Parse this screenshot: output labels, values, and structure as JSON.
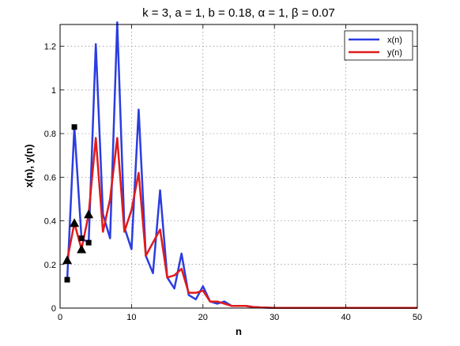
{
  "chart_data": {
    "type": "line",
    "title": "k = 3, a = 1, b = 0.18, α = 1, β = 0.07",
    "xlabel": "n",
    "ylabel": "x(n),  y(n)",
    "xlim": [
      0,
      50
    ],
    "ylim": [
      0,
      1.3
    ],
    "xticks": [
      0,
      10,
      20,
      30,
      40,
      50
    ],
    "yticks": [
      0,
      0.2,
      0.4,
      0.6,
      0.8,
      1,
      1.2
    ],
    "xtick_labels": [
      "0",
      "10",
      "20",
      "30",
      "40",
      "50"
    ],
    "ytick_labels": [
      "0",
      "0.2",
      "0.4",
      "0.6",
      "0.8",
      "1",
      "1.2"
    ],
    "grid": true,
    "legend_position": "top-right",
    "series": [
      {
        "name": "x(n)",
        "color": "#2b3de0",
        "x": [
          1,
          2,
          3,
          4,
          5,
          6,
          7,
          8,
          9,
          10,
          11,
          12,
          13,
          14,
          15,
          16,
          17,
          18,
          19,
          20,
          21,
          22,
          23,
          24,
          25,
          26,
          27,
          28,
          29,
          30,
          31,
          32,
          33,
          34,
          35,
          36,
          37,
          38,
          39,
          40,
          41,
          42,
          43,
          44,
          45,
          46,
          47,
          48,
          49,
          50
        ],
        "values": [
          0.13,
          0.83,
          0.32,
          0.3,
          1.21,
          0.43,
          0.32,
          1.31,
          0.37,
          0.27,
          0.91,
          0.24,
          0.16,
          0.54,
          0.14,
          0.09,
          0.25,
          0.06,
          0.04,
          0.1,
          0.03,
          0.02,
          0.03,
          0.01,
          0.01,
          0.01,
          0.005,
          0.003,
          0.002,
          0.001,
          0.001,
          0.001,
          0.001,
          0.001,
          0.001,
          0.001,
          0.001,
          0.001,
          0.001,
          0.001,
          0.001,
          0.001,
          0.001,
          0.001,
          0.001,
          0.001,
          0.001,
          0.001,
          0.001,
          0.001
        ]
      },
      {
        "name": "y(n)",
        "color": "#e01b1b",
        "x": [
          1,
          2,
          3,
          4,
          5,
          6,
          7,
          8,
          9,
          10,
          11,
          12,
          13,
          14,
          15,
          16,
          17,
          18,
          19,
          20,
          21,
          22,
          23,
          24,
          25,
          26,
          27,
          28,
          29,
          30,
          31,
          32,
          33,
          34,
          35,
          36,
          37,
          38,
          39,
          40,
          41,
          42,
          43,
          44,
          45,
          46,
          47,
          48,
          49,
          50
        ],
        "values": [
          0.22,
          0.39,
          0.27,
          0.43,
          0.78,
          0.35,
          0.5,
          0.78,
          0.35,
          0.45,
          0.62,
          0.24,
          0.3,
          0.36,
          0.14,
          0.15,
          0.18,
          0.07,
          0.07,
          0.08,
          0.03,
          0.03,
          0.02,
          0.01,
          0.01,
          0.01,
          0.005,
          0.003,
          0.002,
          0.001,
          0.001,
          0.001,
          0.001,
          0.001,
          0.001,
          0.001,
          0.001,
          0.001,
          0.001,
          0.001,
          0.001,
          0.001,
          0.001,
          0.001,
          0.001,
          0.001,
          0.001,
          0.001,
          0.001,
          0.001
        ]
      }
    ],
    "markers": {
      "squares": [
        [
          1,
          0.13
        ],
        [
          2,
          0.83
        ],
        [
          3,
          0.32
        ],
        [
          4,
          0.3
        ]
      ],
      "triangles": [
        [
          1,
          0.22
        ],
        [
          2,
          0.39
        ],
        [
          3,
          0.27
        ],
        [
          4,
          0.43
        ]
      ]
    }
  }
}
